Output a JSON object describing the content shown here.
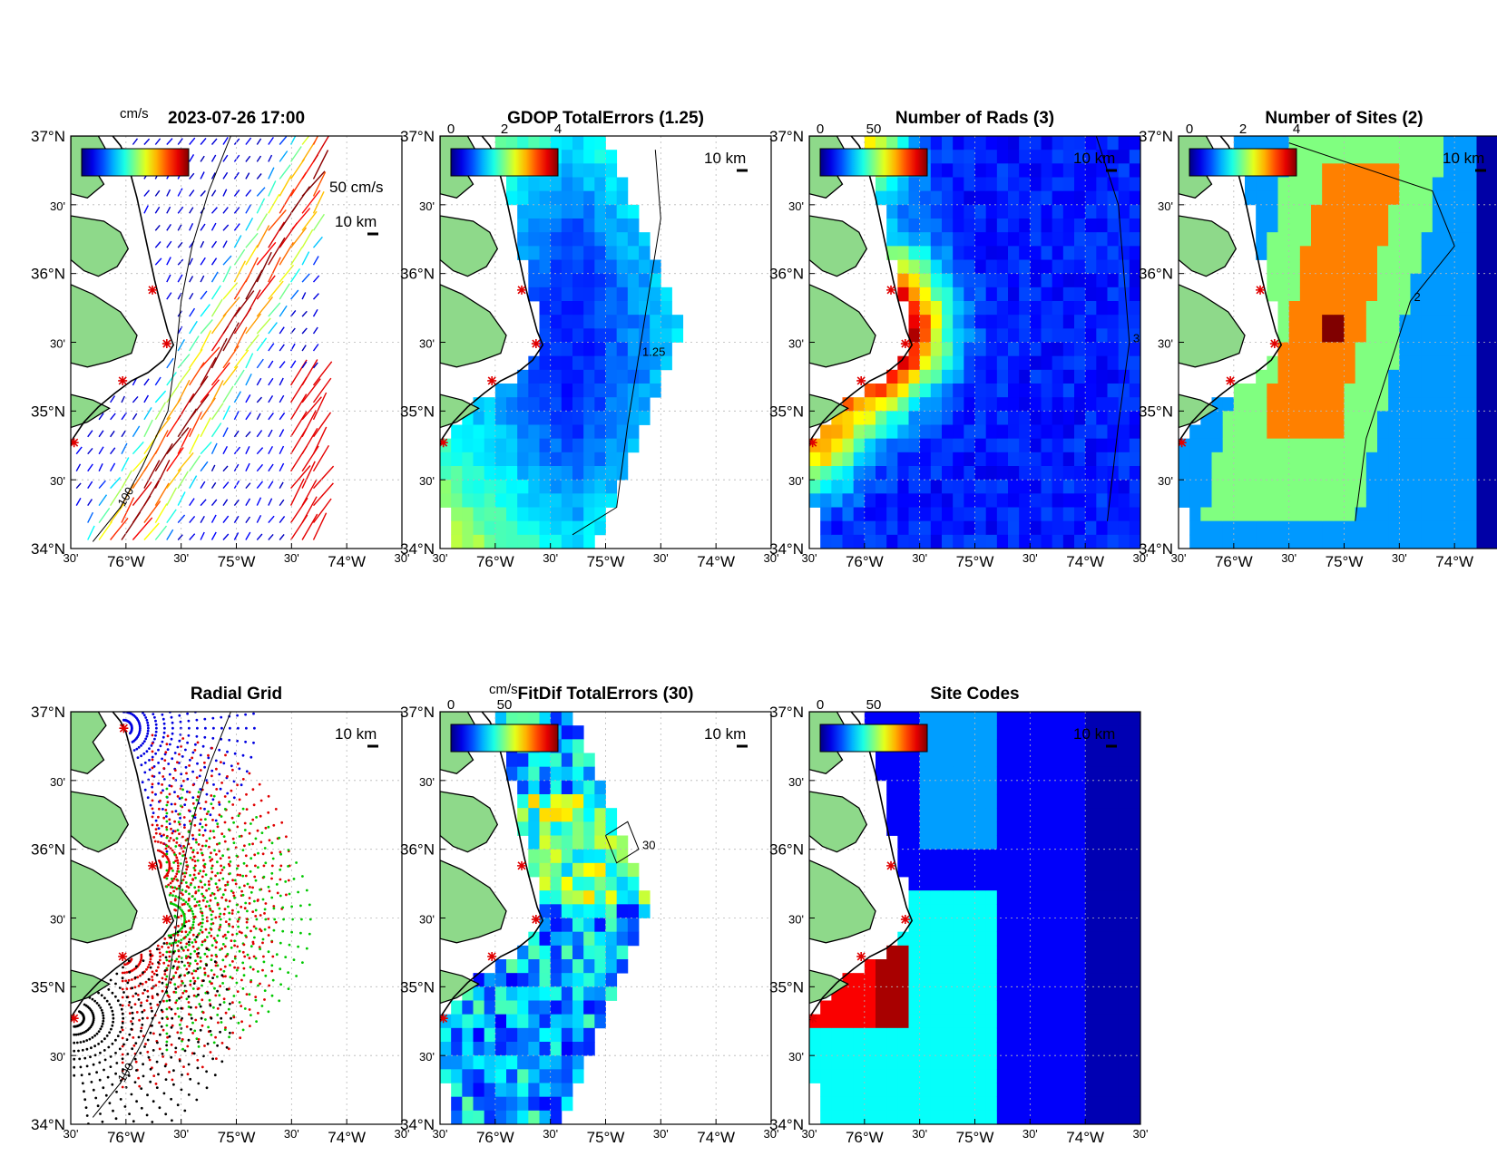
{
  "figure": {
    "datetime": "2023-07-26 17:00"
  },
  "axes": {
    "lat_labels": [
      "37°N",
      "30'",
      "36°N",
      "30'",
      "35°N",
      "30'",
      "34°N"
    ],
    "lon_labels": [
      "30'",
      "76°W",
      "30'",
      "75°W",
      "30'",
      "74°W",
      "30'"
    ]
  },
  "sites": [
    {
      "lon": -76.02,
      "lat": 36.88
    },
    {
      "lon": -75.76,
      "lat": 35.88
    },
    {
      "lon": -75.63,
      "lat": 35.49
    },
    {
      "lon": -76.03,
      "lat": 35.22
    },
    {
      "lon": -76.47,
      "lat": 34.77
    }
  ],
  "chart_data": [
    {
      "type": "scatter",
      "subtype": "current-vectors",
      "title": "2023-07-26 17:00",
      "colorbar": {
        "unit": "cm/s",
        "colormap": "jet",
        "range": [
          0,
          50
        ]
      },
      "scale_vector": "50 cm/s",
      "scale_bar": "10 km",
      "contour_label": "-100",
      "xlim": [
        -76.5,
        -73.5
      ],
      "ylim": [
        34.0,
        37.0
      ]
    },
    {
      "type": "heatmap",
      "title": "GDOP TotalErrors (1.25)",
      "colorbar": {
        "ticks": [
          "0",
          "2",
          "4"
        ],
        "range": [
          0,
          4
        ],
        "colormap": "jet"
      },
      "contour": {
        "level": 1.25,
        "label": "1.25"
      },
      "scale_bar": "10 km",
      "xlim": [
        -76.5,
        -73.5
      ],
      "ylim": [
        34.0,
        37.0
      ]
    },
    {
      "type": "heatmap",
      "title": "Number of Rads (3)",
      "colorbar": {
        "ticks": [
          "0",
          "50"
        ],
        "range": [
          0,
          100
        ],
        "colormap": "jet"
      },
      "contour": {
        "level": 3,
        "label": "3"
      },
      "scale_bar": "10 km",
      "xlim": [
        -76.5,
        -73.5
      ],
      "ylim": [
        34.0,
        37.0
      ]
    },
    {
      "type": "heatmap",
      "title": "Number of Sites (2)",
      "colorbar": {
        "ticks": [
          "0",
          "2",
          "4"
        ],
        "range": [
          0,
          4
        ],
        "colormap": "jet"
      },
      "contour": {
        "level": 2,
        "label": "2"
      },
      "scale_bar": "10 km",
      "xlim": [
        -76.5,
        -73.5
      ],
      "ylim": [
        34.0,
        37.0
      ]
    },
    {
      "type": "scatter",
      "title": "Radial Grid",
      "series_colors": [
        "#0000e0",
        "#e00000",
        "#00c800",
        "#e00000",
        "#000000"
      ],
      "contour_label": "-100",
      "scale_bar": "10 km",
      "xlim": [
        -76.5,
        -73.5
      ],
      "ylim": [
        34.0,
        37.0
      ]
    },
    {
      "type": "heatmap",
      "title": "FitDif TotalErrors (30)",
      "colorbar": {
        "unit": "cm/s",
        "ticks": [
          "0",
          "50"
        ],
        "range": [
          0,
          100
        ],
        "colormap": "jet"
      },
      "contour": {
        "level": 30,
        "label": "30"
      },
      "scale_bar": "10 km",
      "xlim": [
        -76.5,
        -73.5
      ],
      "ylim": [
        34.0,
        37.0
      ]
    },
    {
      "type": "heatmap",
      "title": "Site Codes",
      "colorbar": {
        "ticks": [
          "0",
          "50"
        ],
        "range": [
          0,
          100
        ],
        "colormap": "jet"
      },
      "scale_bar": "10 km",
      "xlim": [
        -76.5,
        -73.5
      ],
      "ylim": [
        34.0,
        37.0
      ]
    }
  ]
}
